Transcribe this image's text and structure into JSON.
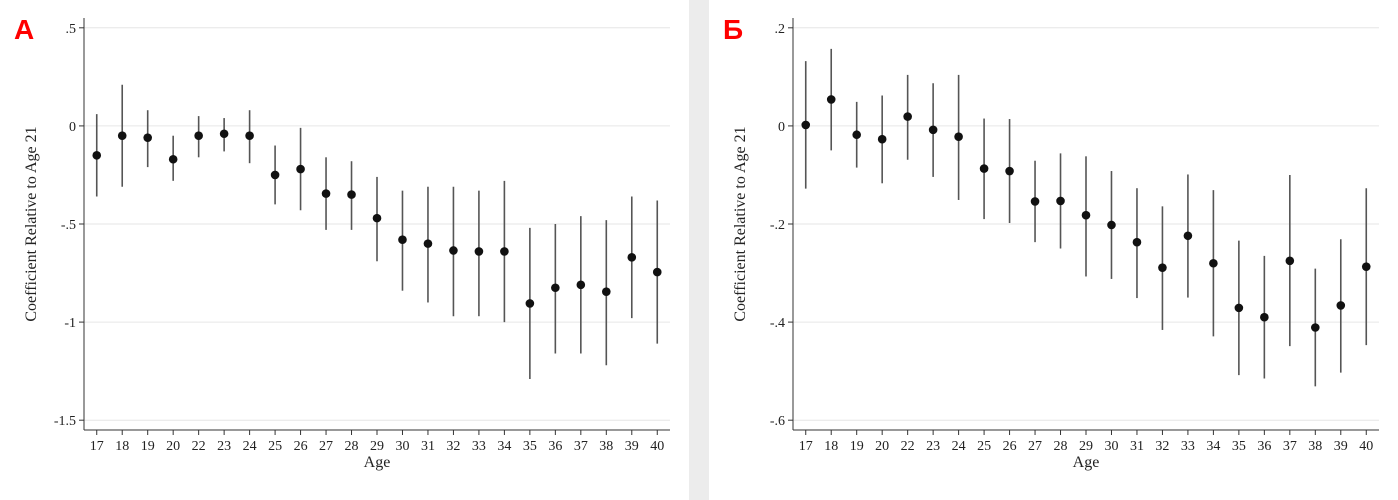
{
  "chart_data": [
    {
      "panel_label": "A",
      "type": "scatter",
      "xlabel": "Age",
      "ylabel": "Coefficient Relative to Age 21",
      "ylim": [
        -1.55,
        0.55
      ],
      "yticks": [
        0.5,
        0,
        -0.5,
        -1,
        -1.5
      ],
      "ytick_labels": [
        ".5",
        "0",
        "-.5",
        "-1",
        "-1.5"
      ],
      "grid": "horizontal",
      "x": [
        17,
        18,
        19,
        20,
        22,
        23,
        24,
        25,
        26,
        27,
        28,
        29,
        30,
        31,
        32,
        33,
        34,
        35,
        36,
        37,
        38,
        39,
        40
      ],
      "y": [
        -0.15,
        -0.05,
        -0.06,
        -0.17,
        -0.05,
        -0.04,
        -0.05,
        -0.25,
        -0.22,
        -0.345,
        -0.35,
        -0.47,
        -0.58,
        -0.6,
        -0.635,
        -0.64,
        -0.64,
        -0.905,
        -0.825,
        -0.81,
        -0.845,
        -0.67,
        -0.745
      ],
      "ci_low": [
        -0.36,
        -0.31,
        -0.21,
        -0.28,
        -0.16,
        -0.13,
        -0.19,
        -0.4,
        -0.43,
        -0.53,
        -0.53,
        -0.69,
        -0.84,
        -0.9,
        -0.97,
        -0.97,
        -1.0,
        -1.29,
        -1.16,
        -1.16,
        -1.22,
        -0.98,
        -1.11
      ],
      "ci_high": [
        0.06,
        0.21,
        0.08,
        -0.05,
        0.05,
        0.04,
        0.08,
        -0.1,
        -0.01,
        -0.16,
        -0.18,
        -0.26,
        -0.33,
        -0.31,
        -0.31,
        -0.33,
        -0.28,
        -0.52,
        -0.5,
        -0.46,
        -0.48,
        -0.36,
        -0.38
      ]
    },
    {
      "panel_label": "Б",
      "type": "scatter",
      "xlabel": "Age",
      "ylabel": "Coefficient Relative to Age 21",
      "ylim": [
        -0.62,
        0.22
      ],
      "yticks": [
        0.2,
        0,
        -0.2,
        -0.4,
        -0.6
      ],
      "ytick_labels": [
        ".2",
        "0",
        "-.2",
        "-.4",
        "-.6"
      ],
      "grid": "horizontal",
      "x": [
        17,
        18,
        19,
        20,
        22,
        23,
        24,
        25,
        26,
        27,
        28,
        29,
        30,
        31,
        32,
        33,
        34,
        35,
        36,
        37,
        38,
        39,
        40
      ],
      "y": [
        0.002,
        0.054,
        -0.018,
        -0.027,
        0.019,
        -0.008,
        -0.022,
        -0.087,
        -0.092,
        -0.154,
        -0.153,
        -0.182,
        -0.202,
        -0.237,
        -0.289,
        -0.224,
        -0.28,
        -0.371,
        -0.39,
        -0.275,
        -0.411,
        -0.366,
        -0.287
      ],
      "ci_low": [
        -0.128,
        -0.05,
        -0.085,
        -0.117,
        -0.069,
        -0.104,
        -0.151,
        -0.19,
        -0.198,
        -0.237,
        -0.25,
        -0.307,
        -0.312,
        -0.351,
        -0.416,
        -0.35,
        -0.429,
        -0.508,
        -0.515,
        -0.449,
        -0.531,
        -0.503,
        -0.447
      ],
      "ci_high": [
        0.132,
        0.157,
        0.049,
        0.062,
        0.104,
        0.087,
        0.104,
        0.015,
        0.014,
        -0.071,
        -0.056,
        -0.062,
        -0.092,
        -0.127,
        -0.164,
        -0.099,
        -0.131,
        -0.234,
        -0.265,
        -0.1,
        -0.291,
        -0.231,
        -0.127
      ]
    }
  ]
}
